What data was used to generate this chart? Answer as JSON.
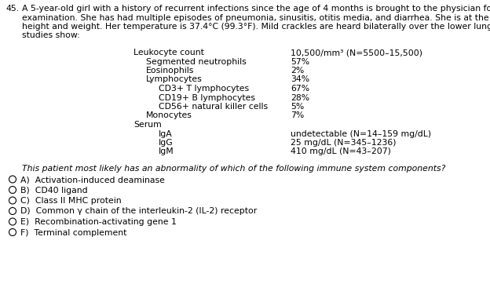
{
  "question_number": "45.",
  "question_text_lines": [
    "A 5-year-old girl with a history of recurrent infections since the age of 4 months is brought to the physician for a follow-up",
    "examination. She has had multiple episodes of pneumonia, sinusitis, otitis media, and diarrhea. She is at the 20th percentile for",
    "height and weight. Her temperature is 37.4°C (99.3°F). Mild crackles are heard bilaterally over the lower lung lobes. Laboratory",
    "studies show:"
  ],
  "lab_rows": [
    {
      "label": "Leukocyte count",
      "indent": 0,
      "value": "10,500/mm³ (N=5500–15,500)"
    },
    {
      "label": "Segmented neutrophils",
      "indent": 1,
      "value": "57%"
    },
    {
      "label": "Eosinophils",
      "indent": 1,
      "value": "2%"
    },
    {
      "label": "Lymphocytes",
      "indent": 1,
      "value": "34%"
    },
    {
      "label": "CD3+ T lymphocytes",
      "indent": 2,
      "value": "67%"
    },
    {
      "label": "CD19+ B lymphocytes",
      "indent": 2,
      "value": "28%"
    },
    {
      "label": "CD56+ natural killer cells",
      "indent": 2,
      "value": "5%"
    },
    {
      "label": "Monocytes",
      "indent": 1,
      "value": "7%"
    },
    {
      "label": "Serum",
      "indent": 0,
      "value": ""
    },
    {
      "label": "IgA",
      "indent": 2,
      "value": "undetectable (N=14–159 mg/dL)"
    },
    {
      "label": "IgG",
      "indent": 2,
      "value": "25 mg/dL (N=345–1236)"
    },
    {
      "label": "IgM",
      "indent": 2,
      "value": "410 mg/dL (N=43–207)"
    }
  ],
  "stem_question": "This patient most likely has an abnormality of which of the following immune system components?",
  "choices": [
    "A)  Activation-induced deaminase",
    "B)  CD40 ligand",
    "C)  Class II MHC protein",
    "D)  Common γ chain of the interleukin-2 (IL-2) receptor",
    "E)  Recombination-activating gene 1",
    "F)  Terminal complement"
  ],
  "bg_color": "#ffffff",
  "text_color": "#000000",
  "font_size": 7.8
}
